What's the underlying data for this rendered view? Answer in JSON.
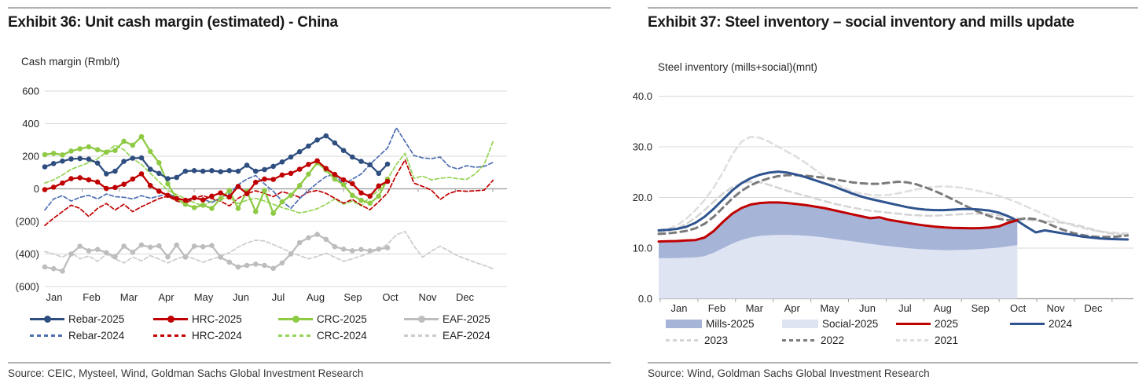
{
  "panels": {
    "left": {
      "title": "Exhibit 36: Unit cash margin (estimated) - China",
      "axis_label": "Cash margin (Rmb/t)",
      "source": "Source: CEIC, Mysteel, Wind, Goldman Sachs Global Investment Research",
      "legend_rows": [
        [
          {
            "label": "Rebar-2025",
            "swatch": "line-marker",
            "color": "#2e4e80"
          },
          {
            "label": "HRC-2025",
            "swatch": "line-marker",
            "color": "#c00000"
          },
          {
            "label": "CRC-2025",
            "swatch": "line-marker",
            "color": "#8fca45"
          },
          {
            "label": "EAF-2025",
            "swatch": "line-marker",
            "color": "#bdbdbd"
          }
        ],
        [
          {
            "label": "Rebar-2024",
            "swatch": "dash",
            "color": "#4f6fb2"
          },
          {
            "label": "HRC-2024",
            "swatch": "dash",
            "color": "#c00000"
          },
          {
            "label": "CRC-2024",
            "swatch": "dash",
            "color": "#95d455"
          },
          {
            "label": "EAF-2024",
            "swatch": "dash",
            "color": "#cbcbcb"
          }
        ]
      ]
    },
    "right": {
      "title": "Exhibit 37: Steel inventory – social inventory and mills update",
      "axis_label": "Steel inventory (mills+social)(mnt)",
      "source": "Source: Wind, Goldman Sachs Global Investment Research",
      "legend_rows": [
        [
          {
            "label": "Mills-2025",
            "swatch": "fill",
            "color": "#a6b4d8"
          },
          {
            "label": "Social-2025",
            "swatch": "fill",
            "color": "#dfe4f3"
          },
          {
            "label": "2025",
            "swatch": "line",
            "color": "#c00000"
          },
          {
            "label": "2024",
            "swatch": "line",
            "color": "#2f5490"
          }
        ],
        [
          {
            "label": "2023",
            "swatch": "dash",
            "color": "#d4d4d4"
          },
          {
            "label": "2022",
            "swatch": "dash",
            "color": "#7b7b7b"
          },
          {
            "label": "2021",
            "swatch": "dash",
            "color": "#dedede"
          }
        ]
      ]
    }
  },
  "chart_data": [
    {
      "type": "line",
      "title": "Unit cash margin (estimated) - China",
      "ylabel": "Cash margin (Rmb/t)",
      "ylim": [
        -600,
        600
      ],
      "ytick_values": [
        600,
        400,
        200,
        0,
        -200,
        -400,
        -600
      ],
      "ytick_labels": [
        "600",
        "400",
        "200",
        "0",
        "(200)",
        "(400)",
        "(600)"
      ],
      "x_categories": [
        "Jan",
        "Feb",
        "Mar",
        "Apr",
        "May",
        "Jun",
        "Jul",
        "Aug",
        "Sep",
        "Oct",
        "Nov",
        "Dec"
      ],
      "x_resolution": "weekly",
      "grid": true,
      "legend_position": "bottom",
      "series": [
        {
          "name": "EAF-2024",
          "color": "#cbcbcb",
          "style": "dashed",
          "width": 1.7,
          "dash": "5 3",
          "markers": false,
          "values": [
            -385,
            -400,
            -420,
            -390,
            -430,
            -412,
            -445,
            -402,
            -430,
            -455,
            -420,
            -442,
            -410,
            -432,
            -455,
            -430,
            -412,
            -430,
            -450,
            -432,
            -415,
            -392,
            -358,
            -332,
            -315,
            -320,
            -342,
            -365,
            -390,
            -410,
            -430,
            -415,
            -395,
            -420,
            -445,
            -430,
            -412,
            -392,
            -372,
            -340,
            -282,
            -262,
            -350,
            -420,
            -382,
            -352,
            -382,
            -412,
            -432,
            -452,
            -470,
            -490
          ]
        },
        {
          "name": "EAF-2025",
          "color": "#bdbdbd",
          "style": "solid",
          "width": 2.3,
          "dash": "",
          "markers": true,
          "values": [
            -480,
            -490,
            -505,
            -400,
            -352,
            -380,
            -372,
            -392,
            -418,
            -352,
            -390,
            -345,
            -358,
            -350,
            -418,
            -345,
            -420,
            -352,
            -355,
            -348,
            -420,
            -450,
            -480,
            -470,
            -462,
            -470,
            -488,
            -455,
            -400,
            -330,
            -300,
            -280,
            -310,
            -355,
            -370,
            -380,
            -372,
            -380,
            -370,
            -362
          ]
        },
        {
          "name": "CRC-2024",
          "color": "#95d455",
          "style": "dashed",
          "width": 1.7,
          "dash": "5 3",
          "markers": false,
          "values": [
            35,
            55,
            85,
            120,
            140,
            160,
            185,
            225,
            268,
            240,
            185,
            150,
            95,
            45,
            -10,
            -35,
            -60,
            -85,
            -105,
            -75,
            -62,
            -55,
            -90,
            -70,
            -58,
            -75,
            -95,
            -115,
            -130,
            -148,
            -138,
            -122,
            -95,
            -62,
            -95,
            -75,
            -105,
            -50,
            -10,
            60,
            150,
            218,
            65,
            78,
            55,
            65,
            70,
            62,
            58,
            92,
            150,
            290
          ]
        },
        {
          "name": "HRC-2024",
          "color": "#c00000",
          "style": "dashed",
          "width": 1.7,
          "dash": "5 3",
          "markers": false,
          "values": [
            -225,
            -180,
            -140,
            -100,
            -120,
            -170,
            -120,
            -90,
            -130,
            -95,
            -140,
            -110,
            -85,
            -60,
            -45,
            -75,
            -90,
            -58,
            -42,
            -60,
            -75,
            -105,
            -58,
            -30,
            -12,
            -28,
            -48,
            -18,
            -32,
            -52,
            -20,
            -10,
            -28,
            -58,
            -88,
            -65,
            -100,
            -128,
            -80,
            -25,
            85,
            178,
            35,
            15,
            -8,
            -65,
            -28,
            -12,
            -15,
            -12,
            -8,
            52
          ]
        },
        {
          "name": "Rebar-2024",
          "color": "#4f6fb2",
          "style": "dashed",
          "width": 1.7,
          "dash": "5 3",
          "markers": false,
          "values": [
            -130,
            -62,
            -42,
            -75,
            -52,
            -40,
            -62,
            -32,
            -48,
            -52,
            -62,
            -42,
            -58,
            -45,
            -30,
            -52,
            -75,
            -58,
            -62,
            -85,
            -55,
            -30,
            25,
            60,
            82,
            30,
            -15,
            -75,
            -120,
            -60,
            -10,
            35,
            75,
            90,
            25,
            60,
            90,
            150,
            200,
            250,
            375,
            290,
            205,
            190,
            185,
            195,
            138,
            122,
            142,
            132,
            138,
            162
          ]
        },
        {
          "name": "CRC-2025",
          "color": "#8fca45",
          "style": "solid",
          "width": 2.3,
          "dash": "",
          "markers": true,
          "values": [
            210,
            218,
            208,
            232,
            246,
            258,
            240,
            225,
            235,
            292,
            268,
            320,
            230,
            160,
            30,
            -60,
            -95,
            -115,
            -100,
            -120,
            -60,
            -10,
            -120,
            -15,
            -140,
            -10,
            -150,
            -80,
            -40,
            20,
            90,
            160,
            115,
            60,
            25,
            -40,
            -70,
            -88,
            -45,
            60
          ]
        },
        {
          "name": "HRC-2025",
          "color": "#c00000",
          "style": "solid",
          "width": 2.3,
          "dash": "",
          "markers": true,
          "values": [
            -5,
            10,
            35,
            62,
            68,
            55,
            42,
            2,
            8,
            28,
            60,
            92,
            20,
            -15,
            -40,
            -60,
            -70,
            -55,
            -68,
            -45,
            -25,
            -50,
            15,
            -30,
            40,
            60,
            58,
            85,
            95,
            120,
            150,
            172,
            125,
            88,
            55,
            32,
            -25,
            -45,
            18,
            46
          ]
        },
        {
          "name": "Rebar-2025",
          "color": "#2e4e80",
          "style": "solid",
          "width": 2.3,
          "dash": "",
          "markers": true,
          "values": [
            135,
            155,
            170,
            183,
            186,
            182,
            158,
            92,
            108,
            168,
            188,
            190,
            120,
            95,
            62,
            70,
            108,
            112,
            108,
            112,
            105,
            112,
            108,
            145,
            108,
            118,
            138,
            165,
            195,
            228,
            262,
            300,
            325,
            282,
            235,
            195,
            168,
            148,
            95,
            152
          ]
        }
      ]
    },
    {
      "type": "area-line",
      "title": "Steel inventory – social inventory and mills update",
      "ylabel": "Steel inventory (mills+social)(mnt)",
      "ylim": [
        0,
        40
      ],
      "ytick_values": [
        40,
        30,
        20,
        10,
        0
      ],
      "ytick_labels": [
        "40.0",
        "30.0",
        "20.0",
        "10.0",
        "0.0"
      ],
      "x_categories": [
        "Jan",
        "Feb",
        "Mar",
        "Apr",
        "May",
        "Jun",
        "Jul",
        "Aug",
        "Sep",
        "Oct",
        "Nov",
        "Dec"
      ],
      "x_resolution": "weekly",
      "grid": true,
      "legend_position": "bottom",
      "areas": [
        {
          "name": "Social-2025",
          "color": "#dfe4f3",
          "values": [
            8.0,
            8.0,
            8.05,
            8.1,
            8.15,
            8.4,
            9.1,
            10.0,
            10.9,
            11.6,
            12.1,
            12.4,
            12.55,
            12.6,
            12.6,
            12.55,
            12.45,
            12.3,
            12.1,
            11.85,
            11.6,
            11.35,
            11.1,
            10.85,
            10.6,
            10.4,
            10.2,
            10.0,
            9.85,
            9.75,
            9.65,
            9.6,
            9.6,
            9.65,
            9.7,
            9.8,
            9.95,
            10.1,
            10.35,
            10.6
          ]
        },
        {
          "name": "Mills-2025",
          "color": "#a6b4d8",
          "stacked_on": "Social-2025",
          "top_values": [
            11.3,
            11.35,
            11.4,
            11.5,
            11.6,
            12.1,
            13.4,
            15.2,
            16.8,
            17.9,
            18.6,
            18.9,
            19.0,
            19.0,
            18.9,
            18.7,
            18.5,
            18.2,
            17.9,
            17.5,
            17.1,
            16.7,
            16.3,
            15.9,
            16.1,
            15.6,
            15.3,
            15.0,
            14.7,
            14.45,
            14.25,
            14.1,
            14.0,
            13.95,
            13.9,
            13.95,
            14.05,
            14.3,
            15.0,
            15.5
          ]
        }
      ],
      "series": [
        {
          "name": "2021",
          "color": "#dedede",
          "style": "dashed",
          "width": 2.5,
          "dash": "8 5",
          "markers": false,
          "values": [
            13.5,
            13.8,
            14.5,
            15.8,
            17.5,
            19.5,
            22.0,
            25.0,
            28.5,
            31.0,
            32.0,
            31.8,
            31.0,
            30.0,
            29.0,
            28.0,
            26.8,
            25.5,
            24.2,
            23.0,
            22.0,
            21.2,
            20.8,
            20.5,
            20.4,
            20.5,
            20.8,
            21.2,
            21.6,
            21.9,
            22.1,
            22.2,
            22.1,
            21.9,
            21.6,
            21.2,
            20.8,
            20.3,
            19.7,
            19.0,
            18.2,
            17.4,
            16.6,
            15.8,
            15.1,
            14.5,
            14.0,
            13.6,
            13.3,
            13.1,
            13.0,
            12.9
          ]
        },
        {
          "name": "2023",
          "color": "#d4d4d4",
          "style": "dashed",
          "width": 2.5,
          "dash": "8 5",
          "markers": false,
          "values": [
            13.2,
            13.4,
            13.9,
            14.8,
            16.0,
            17.5,
            19.2,
            20.8,
            22.0,
            22.8,
            23.1,
            23.0,
            22.5,
            21.9,
            21.3,
            20.8,
            20.3,
            19.8,
            19.3,
            18.8,
            18.4,
            18.0,
            17.7,
            17.4,
            17.2,
            17.0,
            16.8,
            16.6,
            16.5,
            16.4,
            16.4,
            16.5,
            16.6,
            16.7,
            16.8,
            16.8,
            16.7,
            16.5,
            16.2,
            15.9,
            15.6,
            15.4,
            15.3,
            15.2,
            15.0,
            14.7,
            14.3,
            13.8,
            13.3,
            12.9,
            12.7,
            12.6
          ]
        },
        {
          "name": "2022",
          "color": "#7b7b7b",
          "style": "dashed",
          "width": 3,
          "dash": "8 6",
          "markers": false,
          "values": [
            12.8,
            12.9,
            13.1,
            13.4,
            13.9,
            14.8,
            16.2,
            18.0,
            19.8,
            21.3,
            22.4,
            23.2,
            23.8,
            24.2,
            24.4,
            24.4,
            24.3,
            24.1,
            23.9,
            23.6,
            23.3,
            23.0,
            22.8,
            22.7,
            22.7,
            22.9,
            23.1,
            23.0,
            22.6,
            22.0,
            21.3,
            20.5,
            19.6,
            18.7,
            17.8,
            17.0,
            16.3,
            15.8,
            15.5,
            15.6,
            15.9,
            15.7,
            15.1,
            14.3,
            13.6,
            13.0,
            12.6,
            12.3,
            12.2,
            12.2,
            12.3,
            12.5
          ]
        },
        {
          "name": "2024",
          "color": "#2f5490",
          "style": "solid",
          "width": 3,
          "dash": "",
          "markers": false,
          "values": [
            13.5,
            13.6,
            13.8,
            14.2,
            15.0,
            16.2,
            17.8,
            19.6,
            21.4,
            22.8,
            23.8,
            24.5,
            24.9,
            25.1,
            24.9,
            24.5,
            24.0,
            23.4,
            22.8,
            22.2,
            21.5,
            20.8,
            20.2,
            19.7,
            19.3,
            18.9,
            18.5,
            18.1,
            17.8,
            17.6,
            17.5,
            17.5,
            17.6,
            17.7,
            17.7,
            17.6,
            17.4,
            17.0,
            16.3,
            15.4,
            14.2,
            13.1,
            13.5,
            13.2,
            12.9,
            12.6,
            12.3,
            12.1,
            11.9,
            11.8,
            11.75,
            11.7
          ]
        },
        {
          "name": "2025",
          "color": "#c00000",
          "style": "solid",
          "width": 3,
          "dash": "",
          "markers": false,
          "values": [
            11.3,
            11.35,
            11.4,
            11.5,
            11.6,
            12.1,
            13.4,
            15.2,
            16.8,
            17.9,
            18.6,
            18.9,
            19.0,
            19.0,
            18.9,
            18.7,
            18.5,
            18.2,
            17.9,
            17.5,
            17.1,
            16.7,
            16.3,
            15.9,
            16.1,
            15.6,
            15.3,
            15.0,
            14.7,
            14.45,
            14.25,
            14.1,
            14.0,
            13.95,
            13.9,
            13.95,
            14.05,
            14.3,
            15.0,
            15.5
          ]
        }
      ]
    }
  ],
  "colors": {
    "grid": "#d8d8d8",
    "axis": "#9b9b9b",
    "rule": "#b3b3b3"
  }
}
